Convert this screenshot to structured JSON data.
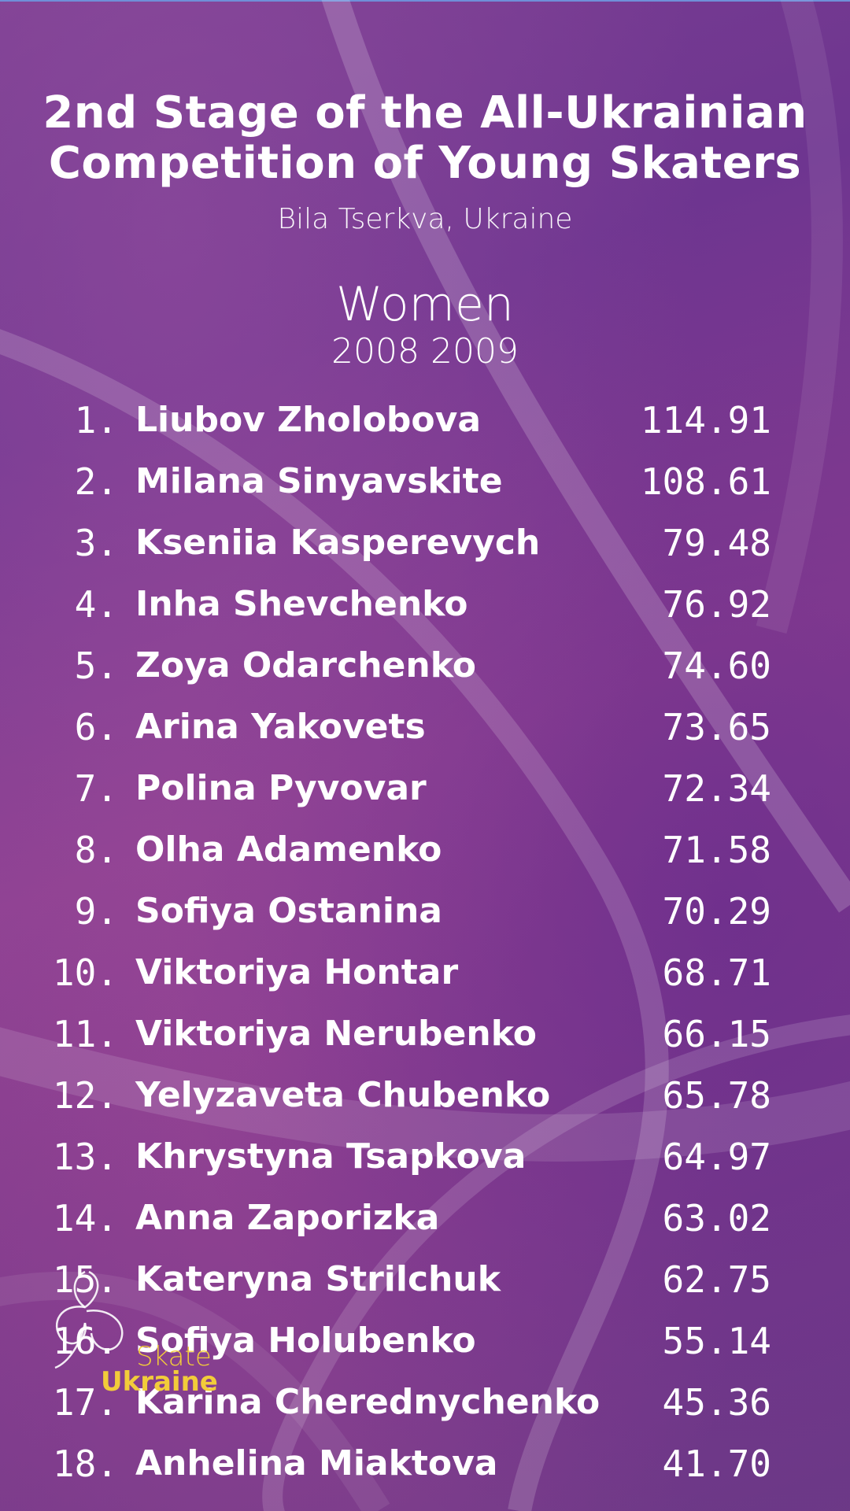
{
  "header": {
    "title_line1": "2nd Stage of the All-Ukrainian",
    "title_line2": "Competition of Young Skaters",
    "location": "Bila Tserkva, Ukraine"
  },
  "category": {
    "name": "Women",
    "years": "2008 2009"
  },
  "results": [
    {
      "rank": "1.",
      "name": "Liubov Zholobova",
      "score": "114.91"
    },
    {
      "rank": "2.",
      "name": "Milana Sinyavskite",
      "score": "108.61"
    },
    {
      "rank": "3.",
      "name": "Kseniia Kasperevych",
      "score": "79.48"
    },
    {
      "rank": "4.",
      "name": "Inha Shevchenko",
      "score": "76.92"
    },
    {
      "rank": "5.",
      "name": "Zoya Odarchenko",
      "score": "74.60"
    },
    {
      "rank": "6.",
      "name": "Arina Yakovets",
      "score": "73.65"
    },
    {
      "rank": "7.",
      "name": "Polina Pyvovar",
      "score": "72.34"
    },
    {
      "rank": "8.",
      "name": "Olha Adamenko",
      "score": "71.58"
    },
    {
      "rank": "9.",
      "name": "Sofiya Ostanina",
      "score": "70.29"
    },
    {
      "rank": "10.",
      "name": "Viktoriya Hontar",
      "score": "68.71"
    },
    {
      "rank": "11.",
      "name": "Viktoriya Nerubenko",
      "score": "66.15"
    },
    {
      "rank": "12.",
      "name": "Yelyzaveta Chubenko",
      "score": "65.78"
    },
    {
      "rank": "13.",
      "name": "Khrystyna Tsapkova",
      "score": "64.97"
    },
    {
      "rank": "14.",
      "name": "Anna Zaporizka",
      "score": "63.02"
    },
    {
      "rank": "15.",
      "name": "Kateryna Strilchuk",
      "score": "62.75"
    },
    {
      "rank": "16.",
      "name": "Sofiya Holubenko",
      "score": "55.14"
    },
    {
      "rank": "17.",
      "name": "Karina Cherednychenko",
      "score": "45.36"
    },
    {
      "rank": "18.",
      "name": "Anhelina Miaktova",
      "score": "41.70"
    }
  ],
  "logo": {
    "word1": "Skate",
    "word2": "Ukraine",
    "icon": "skater-swirl-icon"
  },
  "colors": {
    "background": "#7a3f92",
    "text": "#ffffff",
    "logo_accent": "#f2cc3a"
  }
}
